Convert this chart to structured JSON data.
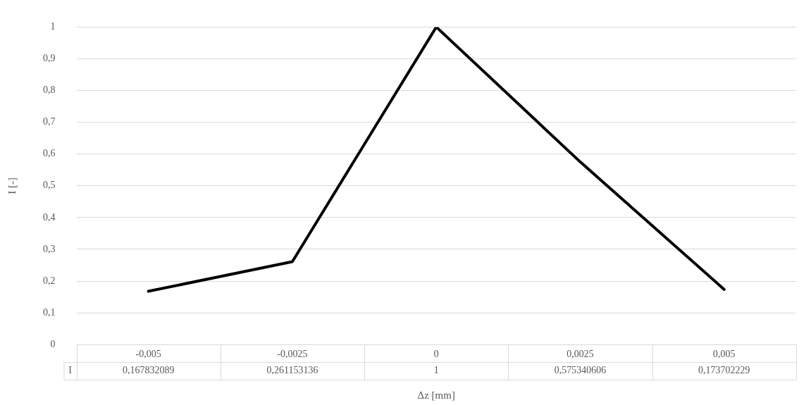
{
  "chart_data": {
    "type": "line",
    "xlabel": "Δz [mm]",
    "ylabel": "I [-]",
    "categories": [
      "-0,005",
      "-0,0025",
      "0",
      "0,0025",
      "0,005"
    ],
    "series": [
      {
        "name": "I",
        "color": "#000000",
        "values": [
          0.167832089,
          0.261153136,
          1,
          0.575340606,
          0.173702229
        ],
        "value_labels": [
          "0,167832089",
          "0,261153136",
          "1",
          "0,575340606",
          "0,173702229"
        ]
      }
    ],
    "ylim": [
      0,
      1
    ],
    "yticks": [
      0,
      {
        "value": 0.1,
        "label": "0,1"
      },
      {
        "value": 0.2,
        "label": "0,2"
      },
      {
        "value": 0.3,
        "label": "0,3"
      },
      {
        "value": 0.4,
        "label": "0,4"
      },
      {
        "value": 0.5,
        "label": "0,5"
      },
      {
        "value": 0.6,
        "label": "0,6"
      },
      {
        "value": 0.7,
        "label": "0,7"
      },
      {
        "value": 0.8,
        "label": "0,8"
      },
      {
        "value": 0.9,
        "label": "0,9"
      },
      1
    ],
    "grid": "y",
    "legend": false,
    "marker": "none",
    "line_style": "solid"
  }
}
